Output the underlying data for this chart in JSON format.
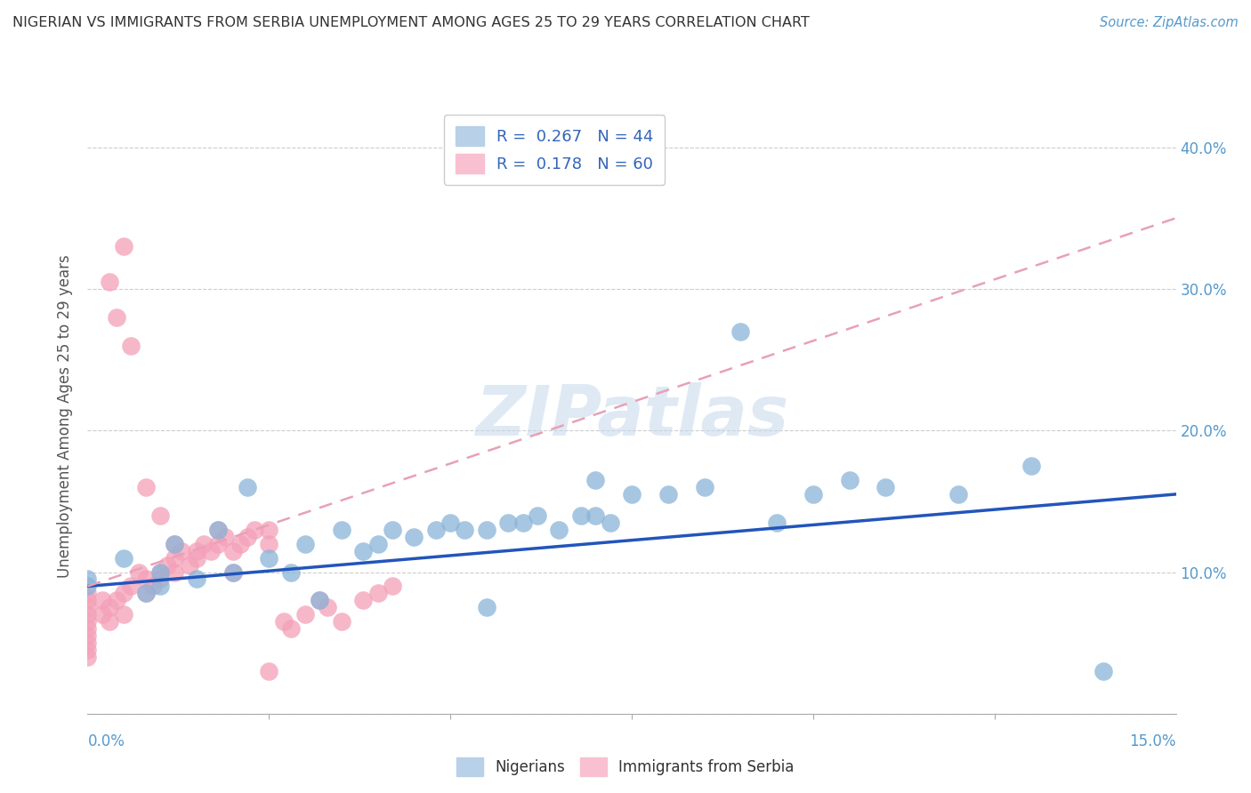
{
  "title": "NIGERIAN VS IMMIGRANTS FROM SERBIA UNEMPLOYMENT AMONG AGES 25 TO 29 YEARS CORRELATION CHART",
  "source": "Source: ZipAtlas.com",
  "ylabel": "Unemployment Among Ages 25 to 29 years",
  "xlim": [
    0.0,
    0.15
  ],
  "ylim": [
    0.0,
    0.42
  ],
  "yticks": [
    0.0,
    0.1,
    0.2,
    0.3,
    0.4
  ],
  "ytick_labels_right": [
    "10.0%",
    "20.0%",
    "30.0%",
    "40.0%"
  ],
  "watermark": "ZIPatlas",
  "nigerian_color": "#8ab4d8",
  "serbian_color": "#f4a0b8",
  "nigerian_line_color": "#2255bb",
  "serbian_line_color": "#e8a0b8",
  "nigerian_R": 0.267,
  "nigerian_N": 44,
  "serbian_R": 0.178,
  "serbian_N": 60,
  "nig_line_y0": 0.09,
  "nig_line_y1": 0.155,
  "ser_line_y0": 0.09,
  "ser_line_y1": 0.35,
  "nigerian_x": [
    0.0,
    0.0,
    0.005,
    0.008,
    0.01,
    0.01,
    0.012,
    0.015,
    0.018,
    0.02,
    0.022,
    0.025,
    0.028,
    0.03,
    0.032,
    0.035,
    0.038,
    0.04,
    0.042,
    0.045,
    0.048,
    0.05,
    0.052,
    0.055,
    0.058,
    0.06,
    0.062,
    0.065,
    0.068,
    0.07,
    0.072,
    0.075,
    0.08,
    0.085,
    0.09,
    0.095,
    0.1,
    0.105,
    0.11,
    0.13,
    0.14,
    0.12,
    0.07,
    0.055
  ],
  "nigerian_y": [
    0.09,
    0.095,
    0.11,
    0.085,
    0.09,
    0.1,
    0.12,
    0.095,
    0.13,
    0.1,
    0.16,
    0.11,
    0.1,
    0.12,
    0.08,
    0.13,
    0.115,
    0.12,
    0.13,
    0.125,
    0.13,
    0.135,
    0.13,
    0.13,
    0.135,
    0.135,
    0.14,
    0.13,
    0.14,
    0.14,
    0.135,
    0.155,
    0.155,
    0.16,
    0.27,
    0.135,
    0.155,
    0.165,
    0.16,
    0.175,
    0.03,
    0.155,
    0.165,
    0.075
  ],
  "serbian_x": [
    0.0,
    0.0,
    0.0,
    0.0,
    0.0,
    0.0,
    0.0,
    0.0,
    0.0,
    0.0,
    0.002,
    0.002,
    0.003,
    0.003,
    0.004,
    0.005,
    0.005,
    0.005,
    0.006,
    0.007,
    0.008,
    0.008,
    0.009,
    0.01,
    0.01,
    0.011,
    0.012,
    0.012,
    0.013,
    0.014,
    0.015,
    0.016,
    0.017,
    0.018,
    0.019,
    0.02,
    0.021,
    0.022,
    0.023,
    0.025,
    0.025,
    0.027,
    0.028,
    0.03,
    0.032,
    0.033,
    0.035,
    0.038,
    0.04,
    0.042,
    0.003,
    0.004,
    0.006,
    0.008,
    0.01,
    0.012,
    0.015,
    0.018,
    0.02,
    0.025
  ],
  "serbian_y": [
    0.07,
    0.075,
    0.08,
    0.085,
    0.065,
    0.06,
    0.055,
    0.05,
    0.045,
    0.04,
    0.07,
    0.08,
    0.065,
    0.075,
    0.08,
    0.07,
    0.085,
    0.33,
    0.09,
    0.1,
    0.095,
    0.085,
    0.09,
    0.1,
    0.095,
    0.105,
    0.1,
    0.11,
    0.115,
    0.105,
    0.115,
    0.12,
    0.115,
    0.12,
    0.125,
    0.115,
    0.12,
    0.125,
    0.13,
    0.13,
    0.03,
    0.065,
    0.06,
    0.07,
    0.08,
    0.075,
    0.065,
    0.08,
    0.085,
    0.09,
    0.305,
    0.28,
    0.26,
    0.16,
    0.14,
    0.12,
    0.11,
    0.13,
    0.1,
    0.12
  ]
}
